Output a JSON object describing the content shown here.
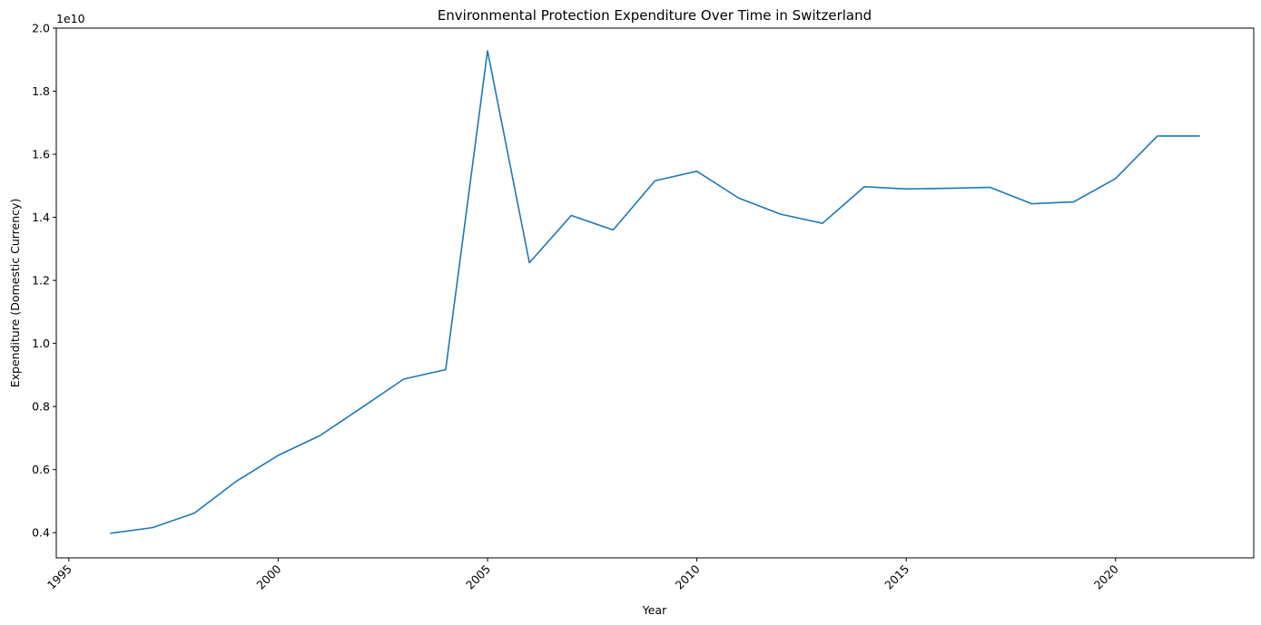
{
  "chart_data": {
    "type": "line",
    "title": "Environmental Protection Expenditure Over Time in Switzerland",
    "xlabel": "Year",
    "ylabel": "Expenditure (Domestic Currency)",
    "y_offset_label": "1e10",
    "xlim": [
      1994.7,
      2023.3
    ],
    "ylim": [
      0.32,
      2.0
    ],
    "y_scale_factor": 10000000000,
    "grid": false,
    "legend": "none",
    "x_ticks": [
      1995,
      2000,
      2005,
      2010,
      2015,
      2020
    ],
    "x_tick_labels": [
      "1995",
      "2000",
      "2005",
      "2010",
      "2015",
      "2020"
    ],
    "y_ticks": [
      0.4,
      0.6,
      0.8,
      1.0,
      1.2,
      1.4,
      1.6,
      1.8,
      2.0
    ],
    "y_tick_labels": [
      "0.4",
      "0.6",
      "0.8",
      "1.0",
      "1.2",
      "1.4",
      "1.6",
      "1.8",
      "2.0"
    ],
    "series": [
      {
        "color": "#1f77b4",
        "x": [
          1996,
          1997,
          1998,
          1999,
          2000,
          2001,
          2002,
          2003,
          2004,
          2005,
          2006,
          2007,
          2008,
          2009,
          2010,
          2011,
          2012,
          2013,
          2014,
          2015,
          2016,
          2017,
          2018,
          2019,
          2020,
          2021,
          2022
        ],
        "values": [
          0.398,
          0.416,
          0.462,
          0.563,
          0.645,
          0.708,
          0.797,
          0.887,
          0.917,
          1.928,
          1.256,
          1.406,
          1.36,
          1.516,
          1.546,
          1.461,
          1.41,
          1.381,
          1.497,
          1.49,
          1.492,
          1.495,
          1.443,
          1.449,
          1.523,
          1.658,
          1.658
        ]
      }
    ]
  }
}
